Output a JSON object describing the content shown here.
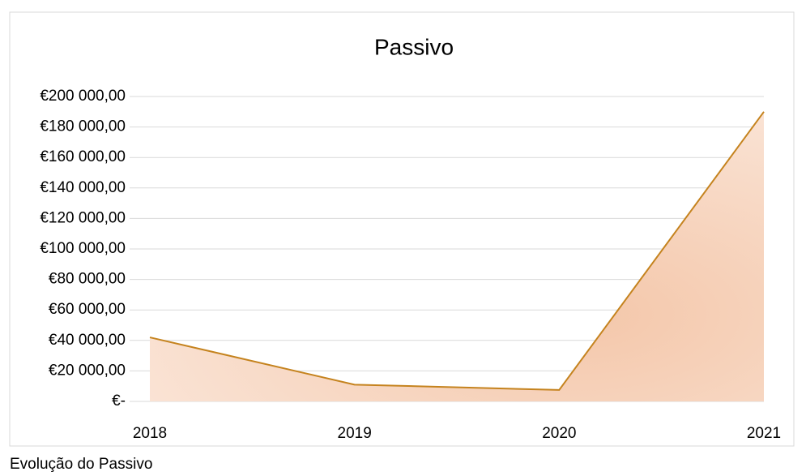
{
  "chart_data": {
    "type": "area",
    "title": "Passivo",
    "categories": [
      "2018",
      "2019",
      "2020",
      "2021"
    ],
    "series": [
      {
        "name": "Passivo",
        "color": "#c5831e",
        "values": [
          42000,
          11000,
          7500,
          190000
        ]
      }
    ],
    "ylim": [
      0,
      200000
    ],
    "yticks": [
      {
        "value": 0,
        "label": "€-"
      },
      {
        "value": 20000,
        "label": "€20 000,00"
      },
      {
        "value": 40000,
        "label": "€40 000,00"
      },
      {
        "value": 60000,
        "label": "€60 000,00"
      },
      {
        "value": 80000,
        "label": "€80 000,00"
      },
      {
        "value": 100000,
        "label": "€100 000,00"
      },
      {
        "value": 120000,
        "label": "€120 000,00"
      },
      {
        "value": 140000,
        "label": "€140 000,00"
      },
      {
        "value": 160000,
        "label": "€160 000,00"
      },
      {
        "value": 180000,
        "label": "€180 000,00"
      },
      {
        "value": 200000,
        "label": "€200 000,00"
      }
    ],
    "grid": true
  },
  "caption": "Evolução do Passivo"
}
